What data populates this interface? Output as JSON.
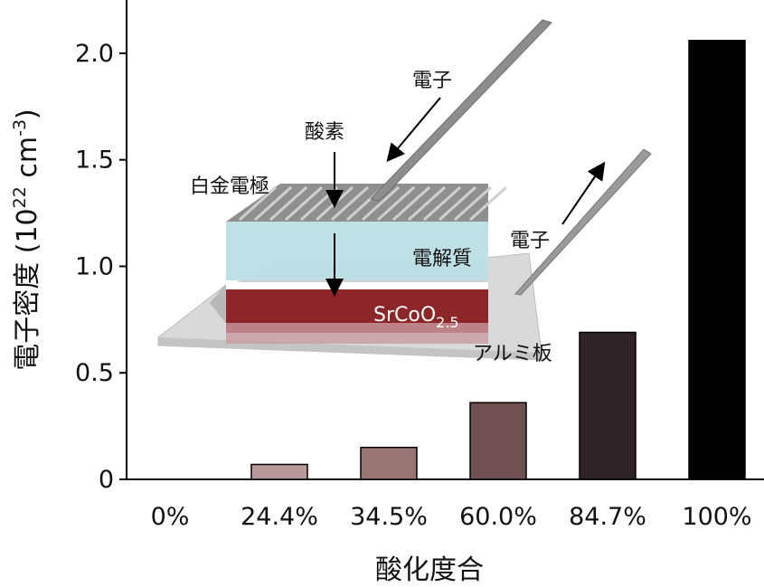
{
  "chart_data": {
    "type": "bar",
    "categories": [
      "0%",
      "24.4%",
      "34.5%",
      "60.0%",
      "84.7%",
      "100%"
    ],
    "values": [
      0,
      0.07,
      0.15,
      0.36,
      0.69,
      2.06
    ],
    "bar_colors": [
      "#ffffff",
      "#b89a9c",
      "#9a7475",
      "#6e5051",
      "#2e2426",
      "#000000"
    ],
    "xlabel": "酸化度合",
    "ylabel_main": "電子密度 (10",
    "ylabel_exp1": "22",
    "ylabel_mid": " cm",
    "ylabel_exp2": "-3",
    "ylabel_end": ")",
    "ylim": [
      0,
      2.25
    ],
    "yticks": [
      0,
      0.5,
      1.0,
      1.5,
      2.0
    ],
    "ytick_labels": [
      "0",
      "0.5",
      "1.0",
      "1.5",
      "2.0"
    ],
    "grid": false
  },
  "inset": {
    "label_platinum": "白金電極",
    "label_oxygen": "酸素",
    "label_electron_in": "電子",
    "label_electron_out": "電子",
    "label_electrolyte": "電解質",
    "label_film_main": "SrCoO",
    "label_film_sub": "2.5",
    "label_substrate": "アルミ板"
  }
}
